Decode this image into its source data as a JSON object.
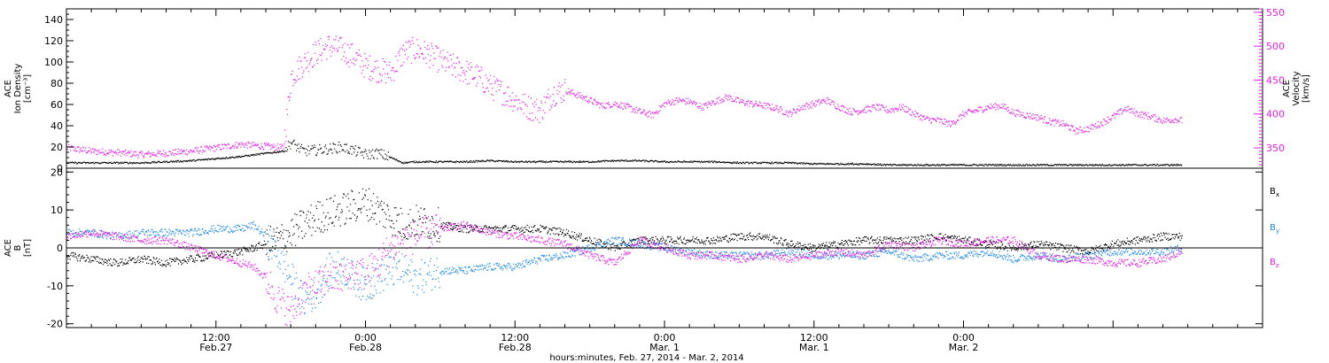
{
  "chart_data": [
    {
      "type": "scatter",
      "panel": "top",
      "ylabel": [
        "ACE",
        "Ion Density",
        "[cm⁻³]"
      ],
      "y2label": [
        "ACE",
        "Velocity",
        "[km/s]"
      ],
      "ylim": [
        0,
        150
      ],
      "y2lim": [
        320,
        555
      ],
      "yticks": [
        0,
        20,
        40,
        60,
        80,
        100,
        120,
        140
      ],
      "y2ticks": [
        350,
        400,
        450,
        500,
        550
      ],
      "colors": {
        "density": "#000000",
        "velocity": "#e41ee4"
      },
      "series": [
        {
          "axis": "y",
          "x_hours": [
            0,
            2,
            4,
            6,
            8,
            10,
            12,
            14,
            16,
            17.4,
            18,
            19,
            20,
            21,
            22,
            24,
            25,
            26,
            27,
            28,
            30,
            32,
            34,
            36,
            38,
            40,
            42,
            44,
            46,
            48,
            50,
            52,
            54,
            56,
            58,
            60,
            62,
            64,
            66,
            68,
            70,
            72,
            74,
            76,
            78,
            80,
            82,
            84,
            86,
            88,
            89.5
          ],
          "values": [
            5,
            5,
            5,
            5,
            6,
            7,
            9,
            11,
            14,
            16,
            24,
            16,
            17,
            18,
            20,
            13,
            14,
            10,
            5,
            6,
            6,
            6,
            7,
            6,
            6,
            6,
            6,
            7,
            7,
            6,
            6,
            6,
            5,
            5,
            5,
            4,
            4,
            4,
            3,
            3,
            3,
            3,
            3,
            3,
            3,
            3,
            3,
            3,
            3,
            3,
            3
          ]
        },
        {
          "axis": "y2",
          "x_hours": [
            0,
            2,
            4,
            6,
            8,
            10,
            12,
            14,
            16,
            17.4,
            18,
            19,
            20,
            21,
            22,
            23,
            24,
            25,
            26,
            27,
            28,
            29,
            30,
            31,
            32,
            33,
            34,
            35,
            36,
            37,
            38,
            39,
            40,
            41,
            42,
            43,
            44,
            45,
            46,
            47,
            48,
            49,
            50,
            51,
            52,
            53,
            54,
            55,
            56,
            57,
            58,
            59,
            60,
            61,
            62,
            63,
            64,
            65,
            66,
            67,
            68,
            69,
            70,
            71,
            72,
            73,
            74,
            75,
            76,
            77,
            78,
            79,
            80,
            81,
            82,
            83,
            84,
            85,
            86,
            87,
            88,
            89,
            89.5
          ],
          "values": [
            350,
            345,
            343,
            340,
            342,
            345,
            350,
            355,
            352,
            350,
            455,
            475,
            490,
            500,
            495,
            485,
            470,
            465,
            460,
            490,
            495,
            488,
            478,
            470,
            462,
            455,
            440,
            432,
            420,
            410,
            405,
            430,
            435,
            428,
            420,
            412,
            415,
            410,
            403,
            398,
            415,
            420,
            418,
            410,
            418,
            425,
            418,
            415,
            412,
            408,
            400,
            410,
            415,
            420,
            410,
            403,
            406,
            410,
            405,
            410,
            400,
            392,
            390,
            385,
            400,
            405,
            410,
            412,
            402,
            398,
            395,
            388,
            385,
            375,
            378,
            386,
            396,
            408,
            400,
            396,
            390,
            392,
            390
          ]
        }
      ]
    },
    {
      "type": "scatter",
      "panel": "bottom",
      "ylabel": [
        "ACE",
        "B",
        "[nT]"
      ],
      "ylim": [
        -21,
        21
      ],
      "yticks": [
        -20,
        -10,
        0,
        10,
        20
      ],
      "xlabel": "hours:minutes, Feb. 27, 2014 - Mar.  2, 2014",
      "xlim_hours": [
        0,
        96
      ],
      "xticks": [
        {
          "hour": 12,
          "l1": "12:00",
          "l2": "Feb.27"
        },
        {
          "hour": 24,
          "l1": "0:00",
          "l2": "Feb.28"
        },
        {
          "hour": 36,
          "l1": "12:00",
          "l2": "Feb.28"
        },
        {
          "hour": 48,
          "l1": "0:00",
          "l2": "Mar. 1"
        },
        {
          "hour": 60,
          "l1": "12:00",
          "l2": "Mar. 1"
        },
        {
          "hour": 72,
          "l1": "0:00",
          "l2": "Mar. 2"
        }
      ],
      "legend": [
        {
          "base": "B",
          "sub": "x",
          "color": "#000000"
        },
        {
          "base": "B",
          "sub": "y",
          "color": "#1e88e5"
        },
        {
          "base": "B",
          "sub": "z",
          "color": "#e41ee4"
        }
      ],
      "series": [
        {
          "name": "Bx",
          "color": "#000000",
          "x_hours": [
            0,
            2,
            4,
            6,
            8,
            10,
            12,
            14,
            15,
            16,
            17,
            18,
            19,
            20,
            21,
            22,
            23,
            24,
            25,
            26,
            27,
            28,
            30,
            32,
            34,
            36,
            38,
            40,
            42,
            44,
            46,
            48,
            50,
            52,
            54,
            56,
            58,
            60,
            62,
            64,
            66,
            68,
            70,
            72,
            74,
            76,
            78,
            80,
            82,
            84,
            86,
            88,
            89.5
          ],
          "values": [
            -2,
            -3,
            -4,
            -3,
            -4,
            -3,
            -2,
            -1,
            0,
            1,
            2,
            4,
            6,
            8,
            9,
            10,
            11,
            12,
            10,
            8,
            6,
            7,
            6,
            5,
            5,
            5,
            5,
            4,
            2,
            0,
            2,
            2,
            2,
            2,
            3,
            3,
            1,
            0,
            1,
            2,
            2,
            2,
            3,
            2,
            1,
            0,
            1,
            0,
            -1,
            1,
            2,
            3,
            3
          ]
        },
        {
          "name": "By",
          "color": "#1e88e5",
          "x_hours": [
            0,
            2,
            4,
            6,
            8,
            10,
            12,
            14,
            15,
            16,
            17,
            18,
            19,
            20,
            21,
            22,
            23,
            24,
            25,
            26,
            27,
            28,
            30,
            32,
            34,
            36,
            38,
            40,
            42,
            44,
            46,
            48,
            50,
            52,
            54,
            56,
            58,
            60,
            62,
            64,
            66,
            68,
            70,
            72,
            74,
            76,
            78,
            80,
            82,
            84,
            86,
            88,
            89.5
          ],
          "values": [
            4,
            4,
            3,
            4,
            4,
            4,
            5,
            5,
            6,
            3,
            -2,
            -8,
            -14,
            -12,
            -6,
            -5,
            -8,
            -10,
            -8,
            -6,
            -6,
            -8,
            -6,
            -6,
            -5,
            -5,
            -3,
            -2,
            0,
            2,
            1,
            0,
            -1,
            -2,
            -2,
            -2,
            -1,
            -2,
            -2,
            -2,
            -1,
            -3,
            -2,
            -2,
            -1,
            -3,
            -2,
            -3,
            -2,
            -1,
            -1,
            -1,
            0
          ]
        },
        {
          "name": "Bz",
          "color": "#e41ee4",
          "x_hours": [
            0,
            2,
            4,
            6,
            8,
            10,
            12,
            14,
            15,
            16,
            17,
            18,
            19,
            20,
            21,
            22,
            23,
            24,
            25,
            26,
            27,
            28,
            30,
            32,
            34,
            36,
            38,
            40,
            42,
            44,
            46,
            48,
            50,
            52,
            54,
            56,
            58,
            60,
            62,
            64,
            66,
            68,
            70,
            72,
            74,
            76,
            78,
            80,
            82,
            84,
            86,
            88,
            89.5
          ],
          "values": [
            3,
            4,
            3,
            2,
            2,
            0,
            -2,
            -4,
            -5,
            -8,
            -14,
            -17,
            -12,
            -10,
            -8,
            -8,
            -6,
            -7,
            -4,
            0,
            2,
            3,
            5,
            6,
            4,
            3,
            2,
            1,
            -2,
            -4,
            2,
            0,
            -2,
            -2,
            -3,
            -2,
            -3,
            -2,
            -1,
            -2,
            1,
            0,
            2,
            1,
            2,
            2,
            -2,
            -3,
            -3,
            -4,
            -4,
            -3,
            -1
          ]
        }
      ]
    }
  ]
}
